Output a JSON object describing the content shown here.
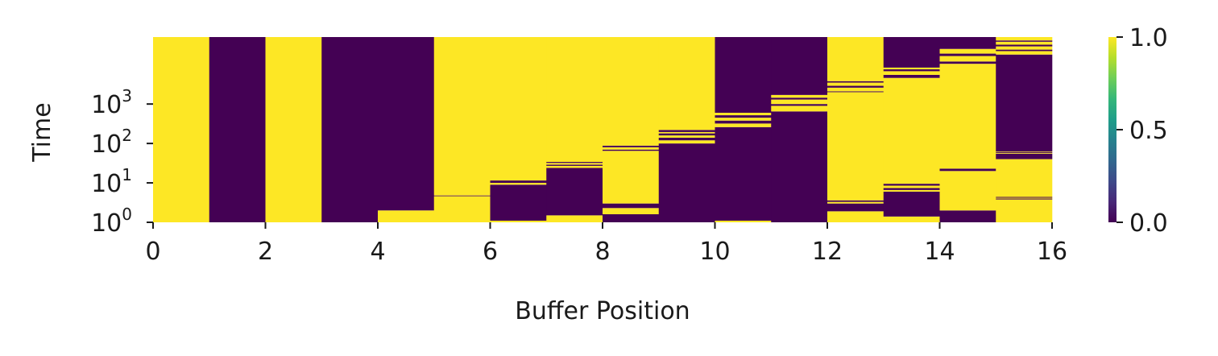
{
  "colors": {
    "high": "#fde725",
    "low": "#440154",
    "colormap": [
      "#440154",
      "#482878",
      "#3e4a89",
      "#31688e",
      "#26828e",
      "#1f9e89",
      "#35b779",
      "#6ece58",
      "#b5de2b",
      "#fde725"
    ]
  },
  "chart_data": {
    "type": "heatmap",
    "title": "",
    "xlabel": "Buffer Position",
    "ylabel": "Time",
    "x_ticks": [
      "0",
      "2",
      "4",
      "6",
      "8",
      "10",
      "12",
      "14",
      "16"
    ],
    "y_ticks": [
      {
        "base": "10",
        "exp": "0",
        "value": 1
      },
      {
        "base": "10",
        "exp": "1",
        "value": 10
      },
      {
        "base": "10",
        "exp": "2",
        "value": 100
      },
      {
        "base": "10",
        "exp": "3",
        "value": 1000
      }
    ],
    "y_scale": "log",
    "xlim": [
      0,
      16
    ],
    "ylim": [
      1,
      50000
    ],
    "colorbar": {
      "range": [
        0.0,
        1.0
      ],
      "ticks": [
        "0.0",
        "0.5",
        "1.0"
      ]
    },
    "columns": [
      {
        "position": 0,
        "segments": [
          {
            "from": 1,
            "to": 50000,
            "value": 1
          }
        ]
      },
      {
        "position": 1,
        "segments": [
          {
            "from": 1,
            "to": 50000,
            "value": 0
          }
        ]
      },
      {
        "position": 2,
        "segments": [
          {
            "from": 1,
            "to": 50000,
            "value": 1
          }
        ]
      },
      {
        "position": 3,
        "segments": [
          {
            "from": 1,
            "to": 50000,
            "value": 0
          }
        ]
      },
      {
        "position": 4,
        "segments": [
          {
            "from": 1,
            "to": 2,
            "value": 1
          },
          {
            "from": 2,
            "to": 50000,
            "value": 0
          }
        ]
      },
      {
        "position": 5,
        "segments": [
          {
            "from": 1,
            "to": 4.6,
            "value": 1
          },
          {
            "from": 4.6,
            "to": 4.8,
            "value": 0
          },
          {
            "from": 4.8,
            "to": 50000,
            "value": 1
          }
        ]
      },
      {
        "position": 6,
        "segments": [
          {
            "from": 1,
            "to": 1.1,
            "value": 1
          },
          {
            "from": 1.1,
            "to": 9,
            "value": 0
          },
          {
            "from": 9,
            "to": 10,
            "value": 1
          },
          {
            "from": 10,
            "to": 11.5,
            "value": 0
          },
          {
            "from": 11.5,
            "to": 50000,
            "value": 1
          }
        ]
      },
      {
        "position": 7,
        "segments": [
          {
            "from": 1,
            "to": 1.5,
            "value": 1
          },
          {
            "from": 1.5,
            "to": 24,
            "value": 0
          },
          {
            "from": 24,
            "to": 27,
            "value": 1
          },
          {
            "from": 27,
            "to": 29,
            "value": 0
          },
          {
            "from": 29,
            "to": 32,
            "value": 1
          },
          {
            "from": 32,
            "to": 34,
            "value": 0
          },
          {
            "from": 34,
            "to": 50000,
            "value": 1
          }
        ]
      },
      {
        "position": 8,
        "segments": [
          {
            "from": 1,
            "to": 1.6,
            "value": 0
          },
          {
            "from": 1.6,
            "to": 2.3,
            "value": 1
          },
          {
            "from": 2.3,
            "to": 3,
            "value": 0
          },
          {
            "from": 3,
            "to": 65,
            "value": 1
          },
          {
            "from": 65,
            "to": 70,
            "value": 0
          },
          {
            "from": 70,
            "to": 80,
            "value": 1
          },
          {
            "from": 80,
            "to": 88,
            "value": 0
          },
          {
            "from": 88,
            "to": 50000,
            "value": 1
          }
        ]
      },
      {
        "position": 9,
        "segments": [
          {
            "from": 1,
            "to": 100,
            "value": 0
          },
          {
            "from": 100,
            "to": 120,
            "value": 1
          },
          {
            "from": 120,
            "to": 140,
            "value": 0
          },
          {
            "from": 140,
            "to": 160,
            "value": 1
          },
          {
            "from": 160,
            "to": 180,
            "value": 0
          },
          {
            "from": 180,
            "to": 195,
            "value": 1
          },
          {
            "from": 195,
            "to": 220,
            "value": 0
          },
          {
            "from": 220,
            "to": 50000,
            "value": 1
          }
        ]
      },
      {
        "position": 10,
        "segments": [
          {
            "from": 1,
            "to": 1.1,
            "value": 1
          },
          {
            "from": 1.1,
            "to": 260,
            "value": 0
          },
          {
            "from": 260,
            "to": 320,
            "value": 1
          },
          {
            "from": 320,
            "to": 380,
            "value": 0
          },
          {
            "from": 380,
            "to": 450,
            "value": 1
          },
          {
            "from": 450,
            "to": 520,
            "value": 0
          },
          {
            "from": 520,
            "to": 600,
            "value": 1
          },
          {
            "from": 600,
            "to": 50000,
            "value": 0
          }
        ]
      },
      {
        "position": 11,
        "segments": [
          {
            "from": 1,
            "to": 650,
            "value": 0
          },
          {
            "from": 650,
            "to": 900,
            "value": 1
          },
          {
            "from": 900,
            "to": 1000,
            "value": 0
          },
          {
            "from": 1000,
            "to": 1300,
            "value": 1
          },
          {
            "from": 1300,
            "to": 1450,
            "value": 0
          },
          {
            "from": 1450,
            "to": 1700,
            "value": 1
          },
          {
            "from": 1700,
            "to": 50000,
            "value": 0
          }
        ]
      },
      {
        "position": 12,
        "segments": [
          {
            "from": 1,
            "to": 1.9,
            "value": 1
          },
          {
            "from": 1.9,
            "to": 3,
            "value": 0
          },
          {
            "from": 3,
            "to": 3.3,
            "value": 1
          },
          {
            "from": 3.3,
            "to": 3.6,
            "value": 0
          },
          {
            "from": 3.6,
            "to": 2000,
            "value": 1
          },
          {
            "from": 2000,
            "to": 2100,
            "value": 0
          },
          {
            "from": 2100,
            "to": 2600,
            "value": 1
          },
          {
            "from": 2600,
            "to": 2900,
            "value": 0
          },
          {
            "from": 2900,
            "to": 3500,
            "value": 1
          },
          {
            "from": 3500,
            "to": 3800,
            "value": 0
          },
          {
            "from": 3800,
            "to": 50000,
            "value": 1
          }
        ]
      },
      {
        "position": 13,
        "segments": [
          {
            "from": 1,
            "to": 1.4,
            "value": 1
          },
          {
            "from": 1.4,
            "to": 6,
            "value": 0
          },
          {
            "from": 6,
            "to": 6.6,
            "value": 1
          },
          {
            "from": 6.6,
            "to": 7.4,
            "value": 0
          },
          {
            "from": 7.4,
            "to": 8.5,
            "value": 1
          },
          {
            "from": 8.5,
            "to": 9.5,
            "value": 0
          },
          {
            "from": 9.5,
            "to": 4600,
            "value": 1
          },
          {
            "from": 4600,
            "to": 5500,
            "value": 0
          },
          {
            "from": 5500,
            "to": 6800,
            "value": 1
          },
          {
            "from": 6800,
            "to": 7600,
            "value": 0
          },
          {
            "from": 7600,
            "to": 8400,
            "value": 1
          },
          {
            "from": 8400,
            "to": 50000,
            "value": 0
          }
        ]
      },
      {
        "position": 14,
        "segments": [
          {
            "from": 1,
            "to": 2,
            "value": 0
          },
          {
            "from": 2,
            "to": 20,
            "value": 1
          },
          {
            "from": 20,
            "to": 23,
            "value": 0
          },
          {
            "from": 23,
            "to": 10500,
            "value": 1
          },
          {
            "from": 10500,
            "to": 12000,
            "value": 0
          },
          {
            "from": 12000,
            "to": 16500,
            "value": 1
          },
          {
            "from": 16500,
            "to": 19000,
            "value": 0
          },
          {
            "from": 19000,
            "to": 25000,
            "value": 1
          },
          {
            "from": 25000,
            "to": 50000,
            "value": 0
          }
        ]
      },
      {
        "position": 15,
        "segments": [
          {
            "from": 1,
            "to": 3.8,
            "value": 1
          },
          {
            "from": 3.8,
            "to": 4,
            "value": 0
          },
          {
            "from": 4,
            "to": 4.2,
            "value": 1
          },
          {
            "from": 4.2,
            "to": 4.4,
            "value": 0
          },
          {
            "from": 4.4,
            "to": 40,
            "value": 1
          },
          {
            "from": 40,
            "to": 55,
            "value": 0
          },
          {
            "from": 55,
            "to": 57,
            "value": 1
          },
          {
            "from": 57,
            "to": 60,
            "value": 0
          },
          {
            "from": 60,
            "to": 62,
            "value": 1
          },
          {
            "from": 62,
            "to": 18000,
            "value": 0
          },
          {
            "from": 18000,
            "to": 22000,
            "value": 1
          },
          {
            "from": 22000,
            "to": 24000,
            "value": 0
          },
          {
            "from": 24000,
            "to": 29000,
            "value": 1
          },
          {
            "from": 29000,
            "to": 32000,
            "value": 0
          },
          {
            "from": 32000,
            "to": 38000,
            "value": 1
          },
          {
            "from": 38000,
            "to": 41000,
            "value": 0
          },
          {
            "from": 41000,
            "to": 50000,
            "value": 1
          }
        ]
      }
    ]
  }
}
